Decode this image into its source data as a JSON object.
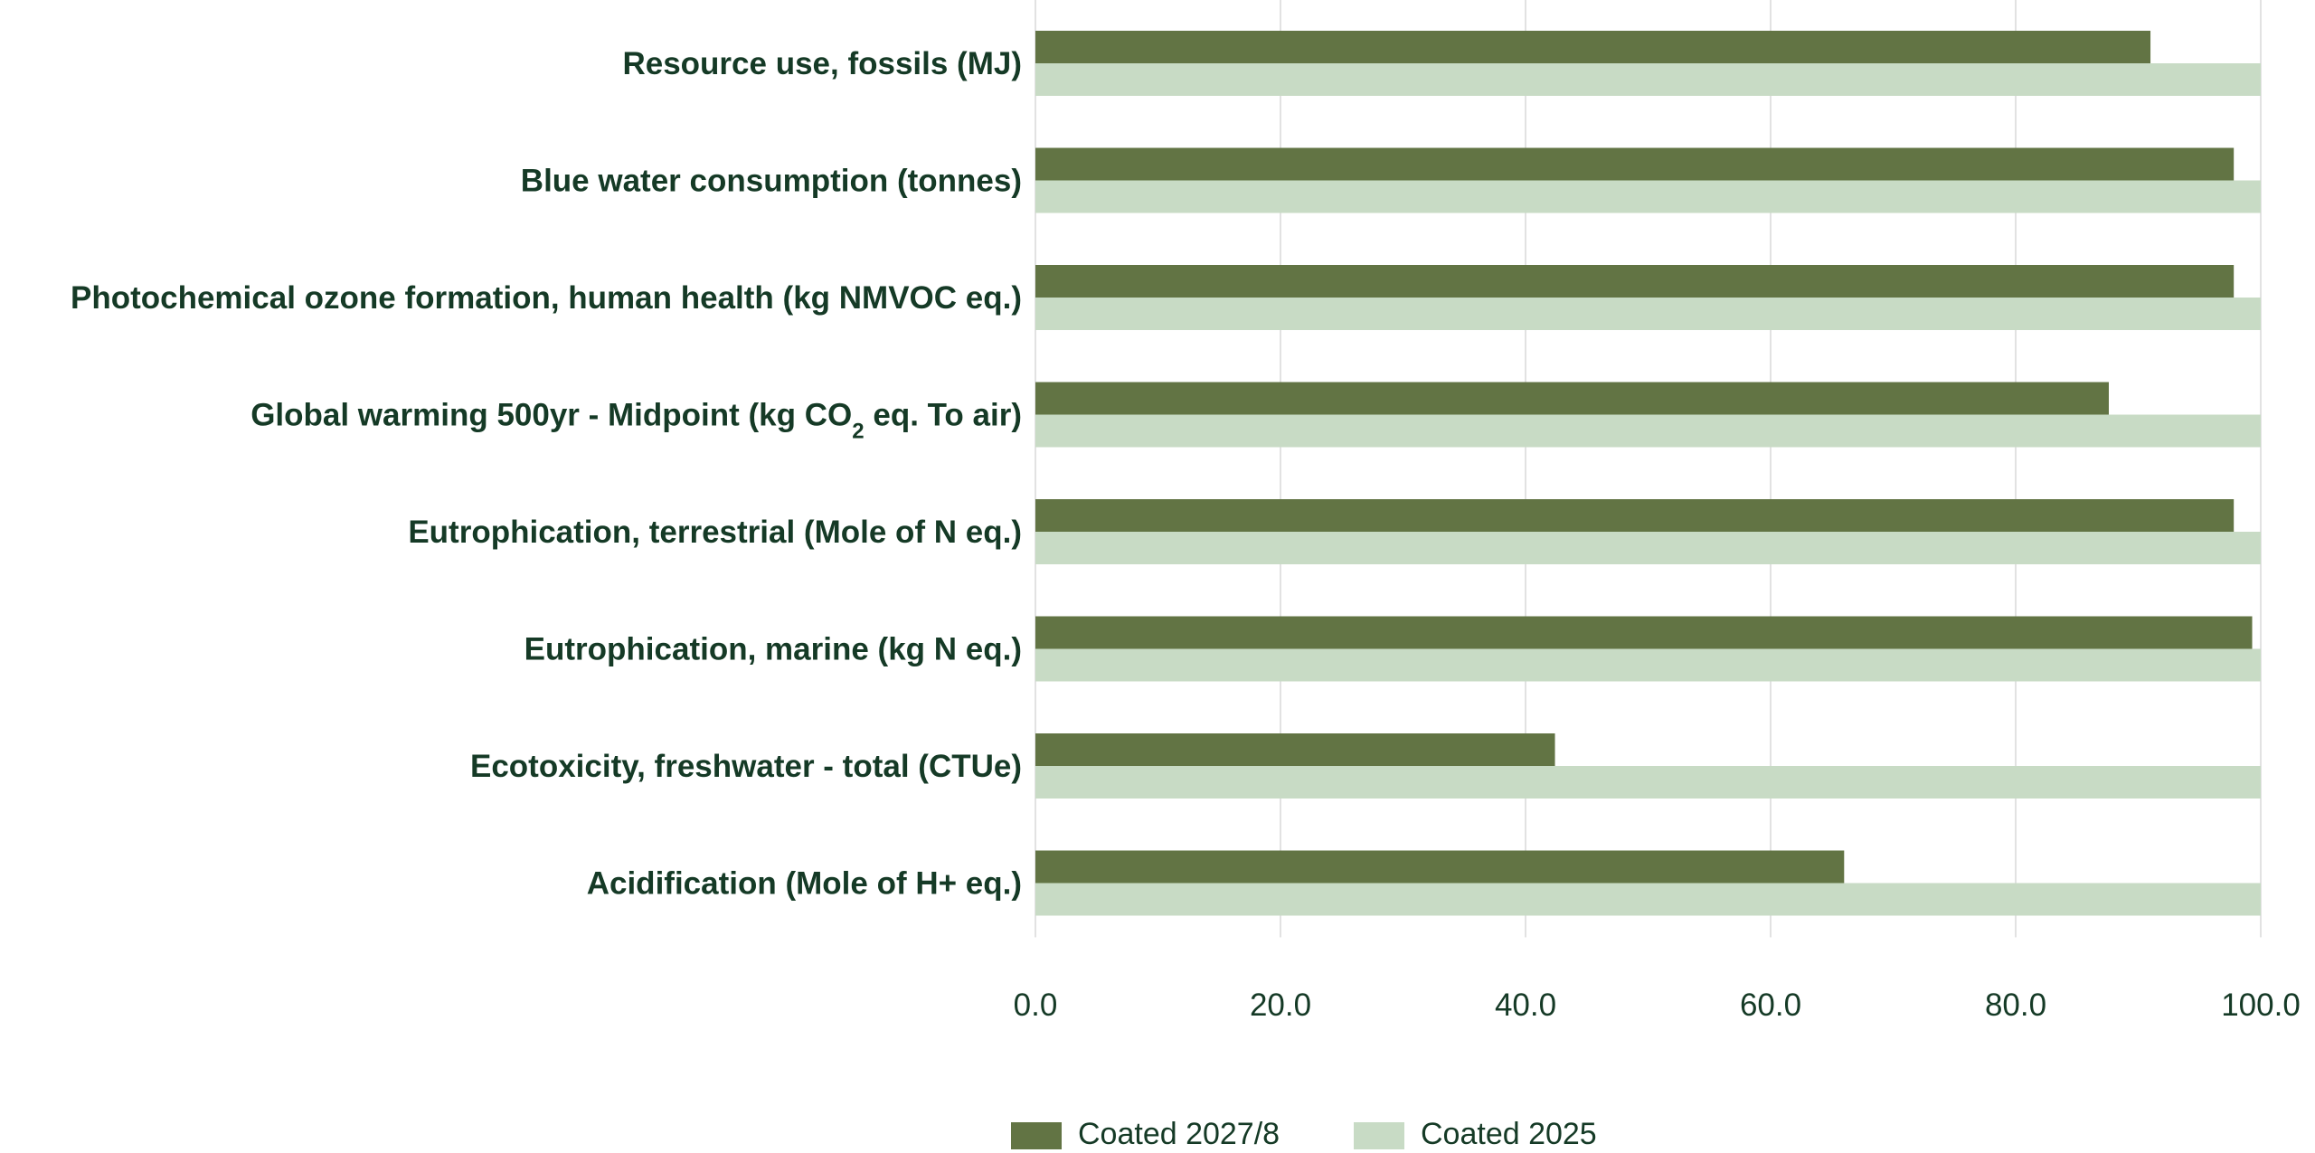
{
  "chart_data": {
    "type": "bar",
    "orientation": "horizontal",
    "categories": [
      {
        "label": "Resource use, fossils (MJ)"
      },
      {
        "label": "Blue water consumption (tonnes)"
      },
      {
        "label": "Photochemical ozone formation, human health (kg NMVOC eq.)"
      },
      {
        "label": "Global warming 500yr - Midpoint (kg CO",
        "sub": "2",
        "after": " eq. To air)"
      },
      {
        "label": "Eutrophication, terrestrial (Mole of N eq.)"
      },
      {
        "label": "Eutrophication, marine (kg N eq.)"
      },
      {
        "label": "Ecotoxicity, freshwater - total (CTUe)"
      },
      {
        "label": "Acidification (Mole of H+ eq.)"
      }
    ],
    "series": [
      {
        "name": "Coated 2027/8",
        "color": "#627444",
        "values": [
          91.0,
          97.8,
          97.8,
          87.6,
          97.8,
          99.3,
          42.4,
          66.0
        ]
      },
      {
        "name": "Coated 2025",
        "color": "#c8dbc5",
        "values": [
          100,
          100,
          100,
          100,
          100,
          100,
          100,
          100
        ]
      }
    ],
    "xlim": [
      0,
      100
    ],
    "xticks": [
      "0.0",
      "20.0",
      "40.0",
      "60.0",
      "80.0",
      "100.0"
    ],
    "grid": true,
    "legend_position": "bottom"
  }
}
